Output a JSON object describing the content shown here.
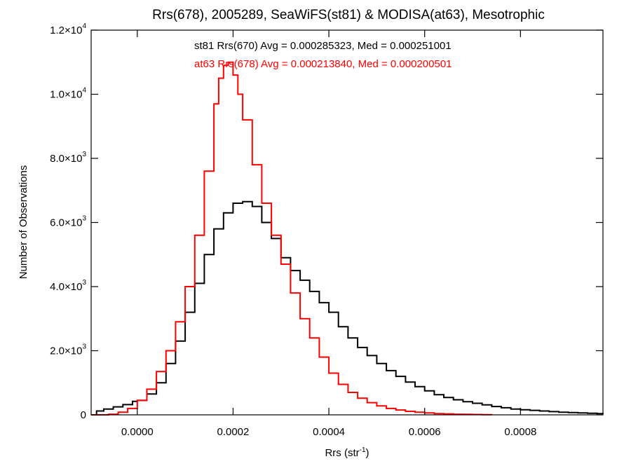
{
  "chart_data": {
    "type": "line",
    "title": "Rrs(678), 2005289, SeaWiFS(st81) & MODISA(at63), Mesotrophic",
    "xlabel_base": "Rrs (str",
    "xlabel_sup": "-1",
    "xlabel_close": ")",
    "ylabel": "Number of Observations",
    "xlim": [
      -9.63e-05,
      0.0009722
    ],
    "ylim": [
      0,
      12000
    ],
    "x_ticks": [
      0.0,
      0.0002,
      0.0004,
      0.0006,
      0.0008
    ],
    "x_tick_labels": [
      "0.0000",
      "0.0002",
      "0.0004",
      "0.0006",
      "0.0008"
    ],
    "y_ticks": [
      {
        "value": 0,
        "mantissa": "0",
        "exp": ""
      },
      {
        "value": 2000,
        "mantissa": "2.0×10",
        "exp": "3"
      },
      {
        "value": 4000,
        "mantissa": "4.0×10",
        "exp": "3"
      },
      {
        "value": 6000,
        "mantissa": "6.0×10",
        "exp": "3"
      },
      {
        "value": 8000,
        "mantissa": "8.0×10",
        "exp": "3"
      },
      {
        "value": 10000,
        "mantissa": "1.0×10",
        "exp": "4"
      },
      {
        "value": 12000,
        "mantissa": "1.2×10",
        "exp": "4"
      }
    ],
    "annotations": [
      {
        "text": "st81 Rrs(670) Avg = 0.000285323, Med = 0.000251001",
        "color": "#000000"
      },
      {
        "text": "at63 Rrs(678) Avg = 0.000213840, Med = 0.000200501",
        "color": "#ff0000"
      }
    ],
    "series": [
      {
        "color": "#000000",
        "x": [
          -9.63e-05,
          -8.5e-05,
          -7e-05,
          -5e-05,
          -3e-05,
          -1e-05,
          0.0,
          2e-05,
          4e-05,
          6e-05,
          8e-05,
          0.0001,
          0.00012,
          0.00014,
          0.00016,
          0.00018,
          0.0002,
          0.00022,
          0.00024,
          0.00026,
          0.00028,
          0.0003,
          0.00032,
          0.00034,
          0.00036,
          0.00038,
          0.0004,
          0.00042,
          0.00044,
          0.00046,
          0.00048,
          0.0005,
          0.00052,
          0.00054,
          0.00056,
          0.00058,
          0.0006,
          0.00062,
          0.00064,
          0.00066,
          0.00068,
          0.0007,
          0.00072,
          0.00074,
          0.00076,
          0.00078,
          0.0008,
          0.00082,
          0.00084,
          0.00086,
          0.00088,
          0.0009,
          0.00092,
          0.00094,
          0.00096,
          0.0009722
        ],
        "y": [
          0,
          120,
          180,
          250,
          320,
          420,
          450,
          650,
          1000,
          1600,
          2300,
          3200,
          4100,
          5000,
          5800,
          6300,
          6600,
          6650,
          6500,
          6000,
          5500,
          4900,
          4500,
          4200,
          3850,
          3500,
          3200,
          2750,
          2400,
          2100,
          1850,
          1600,
          1380,
          1200,
          1020,
          880,
          750,
          630,
          540,
          470,
          410,
          360,
          310,
          260,
          220,
          180,
          160,
          140,
          120,
          100,
          80,
          70,
          60,
          50,
          40,
          30
        ]
      },
      {
        "color": "#ff0000",
        "x": [
          -9.63e-05,
          -8e-05,
          -6e-05,
          -4e-05,
          -2e-05,
          0.0,
          2e-05,
          4e-05,
          6e-05,
          8e-05,
          0.0001,
          0.00012,
          0.00014,
          0.00016,
          0.00017,
          0.00018,
          0.00019,
          0.0002,
          0.00021,
          0.00022,
          0.00024,
          0.00026,
          0.00028,
          0.0003,
          0.00032,
          0.00034,
          0.00036,
          0.00038,
          0.0004,
          0.00042,
          0.00044,
          0.00046,
          0.00048,
          0.0005,
          0.00052,
          0.00054,
          0.00056,
          0.00058,
          0.0006,
          0.00062,
          0.00064,
          0.00066,
          0.00068,
          0.0007,
          0.00072,
          0.00074
        ],
        "y": [
          0,
          0,
          20,
          80,
          200,
          450,
          800,
          1350,
          2000,
          2900,
          4000,
          5600,
          7600,
          9700,
          10500,
          10900,
          11000,
          10600,
          10000,
          9200,
          7800,
          6600,
          5600,
          4700,
          3800,
          3000,
          2400,
          1800,
          1300,
          950,
          700,
          520,
          380,
          280,
          200,
          150,
          110,
          80,
          60,
          40,
          30,
          20,
          15,
          10,
          5,
          0
        ]
      }
    ]
  }
}
